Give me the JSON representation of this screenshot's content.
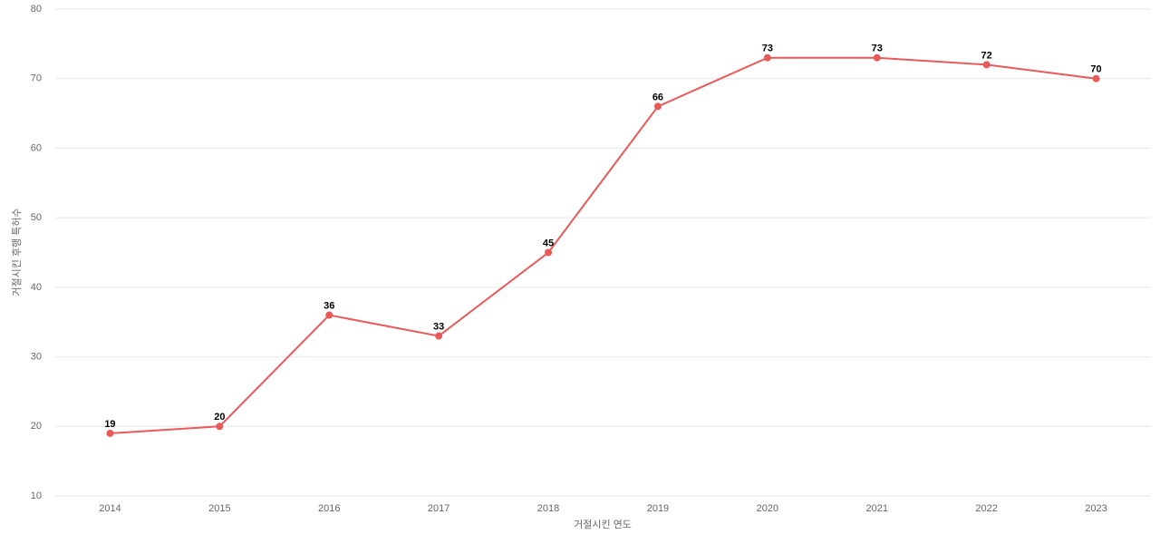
{
  "chart_data": {
    "type": "line",
    "x_label": "거절시킨 연도",
    "y_label": "거절시킨 후행 특허수",
    "categories": [
      "2014",
      "2015",
      "2016",
      "2017",
      "2018",
      "2019",
      "2020",
      "2021",
      "2022",
      "2023"
    ],
    "series": [
      {
        "name": "거절시킨 후행 특허수",
        "color": "#e85a5a",
        "values": [
          19,
          20,
          36,
          33,
          45,
          66,
          73,
          73,
          72,
          70
        ]
      }
    ],
    "ylim": [
      10,
      80
    ],
    "yticks": [
      10,
      20,
      30,
      40,
      50,
      60,
      70,
      80
    ],
    "grid": true
  }
}
